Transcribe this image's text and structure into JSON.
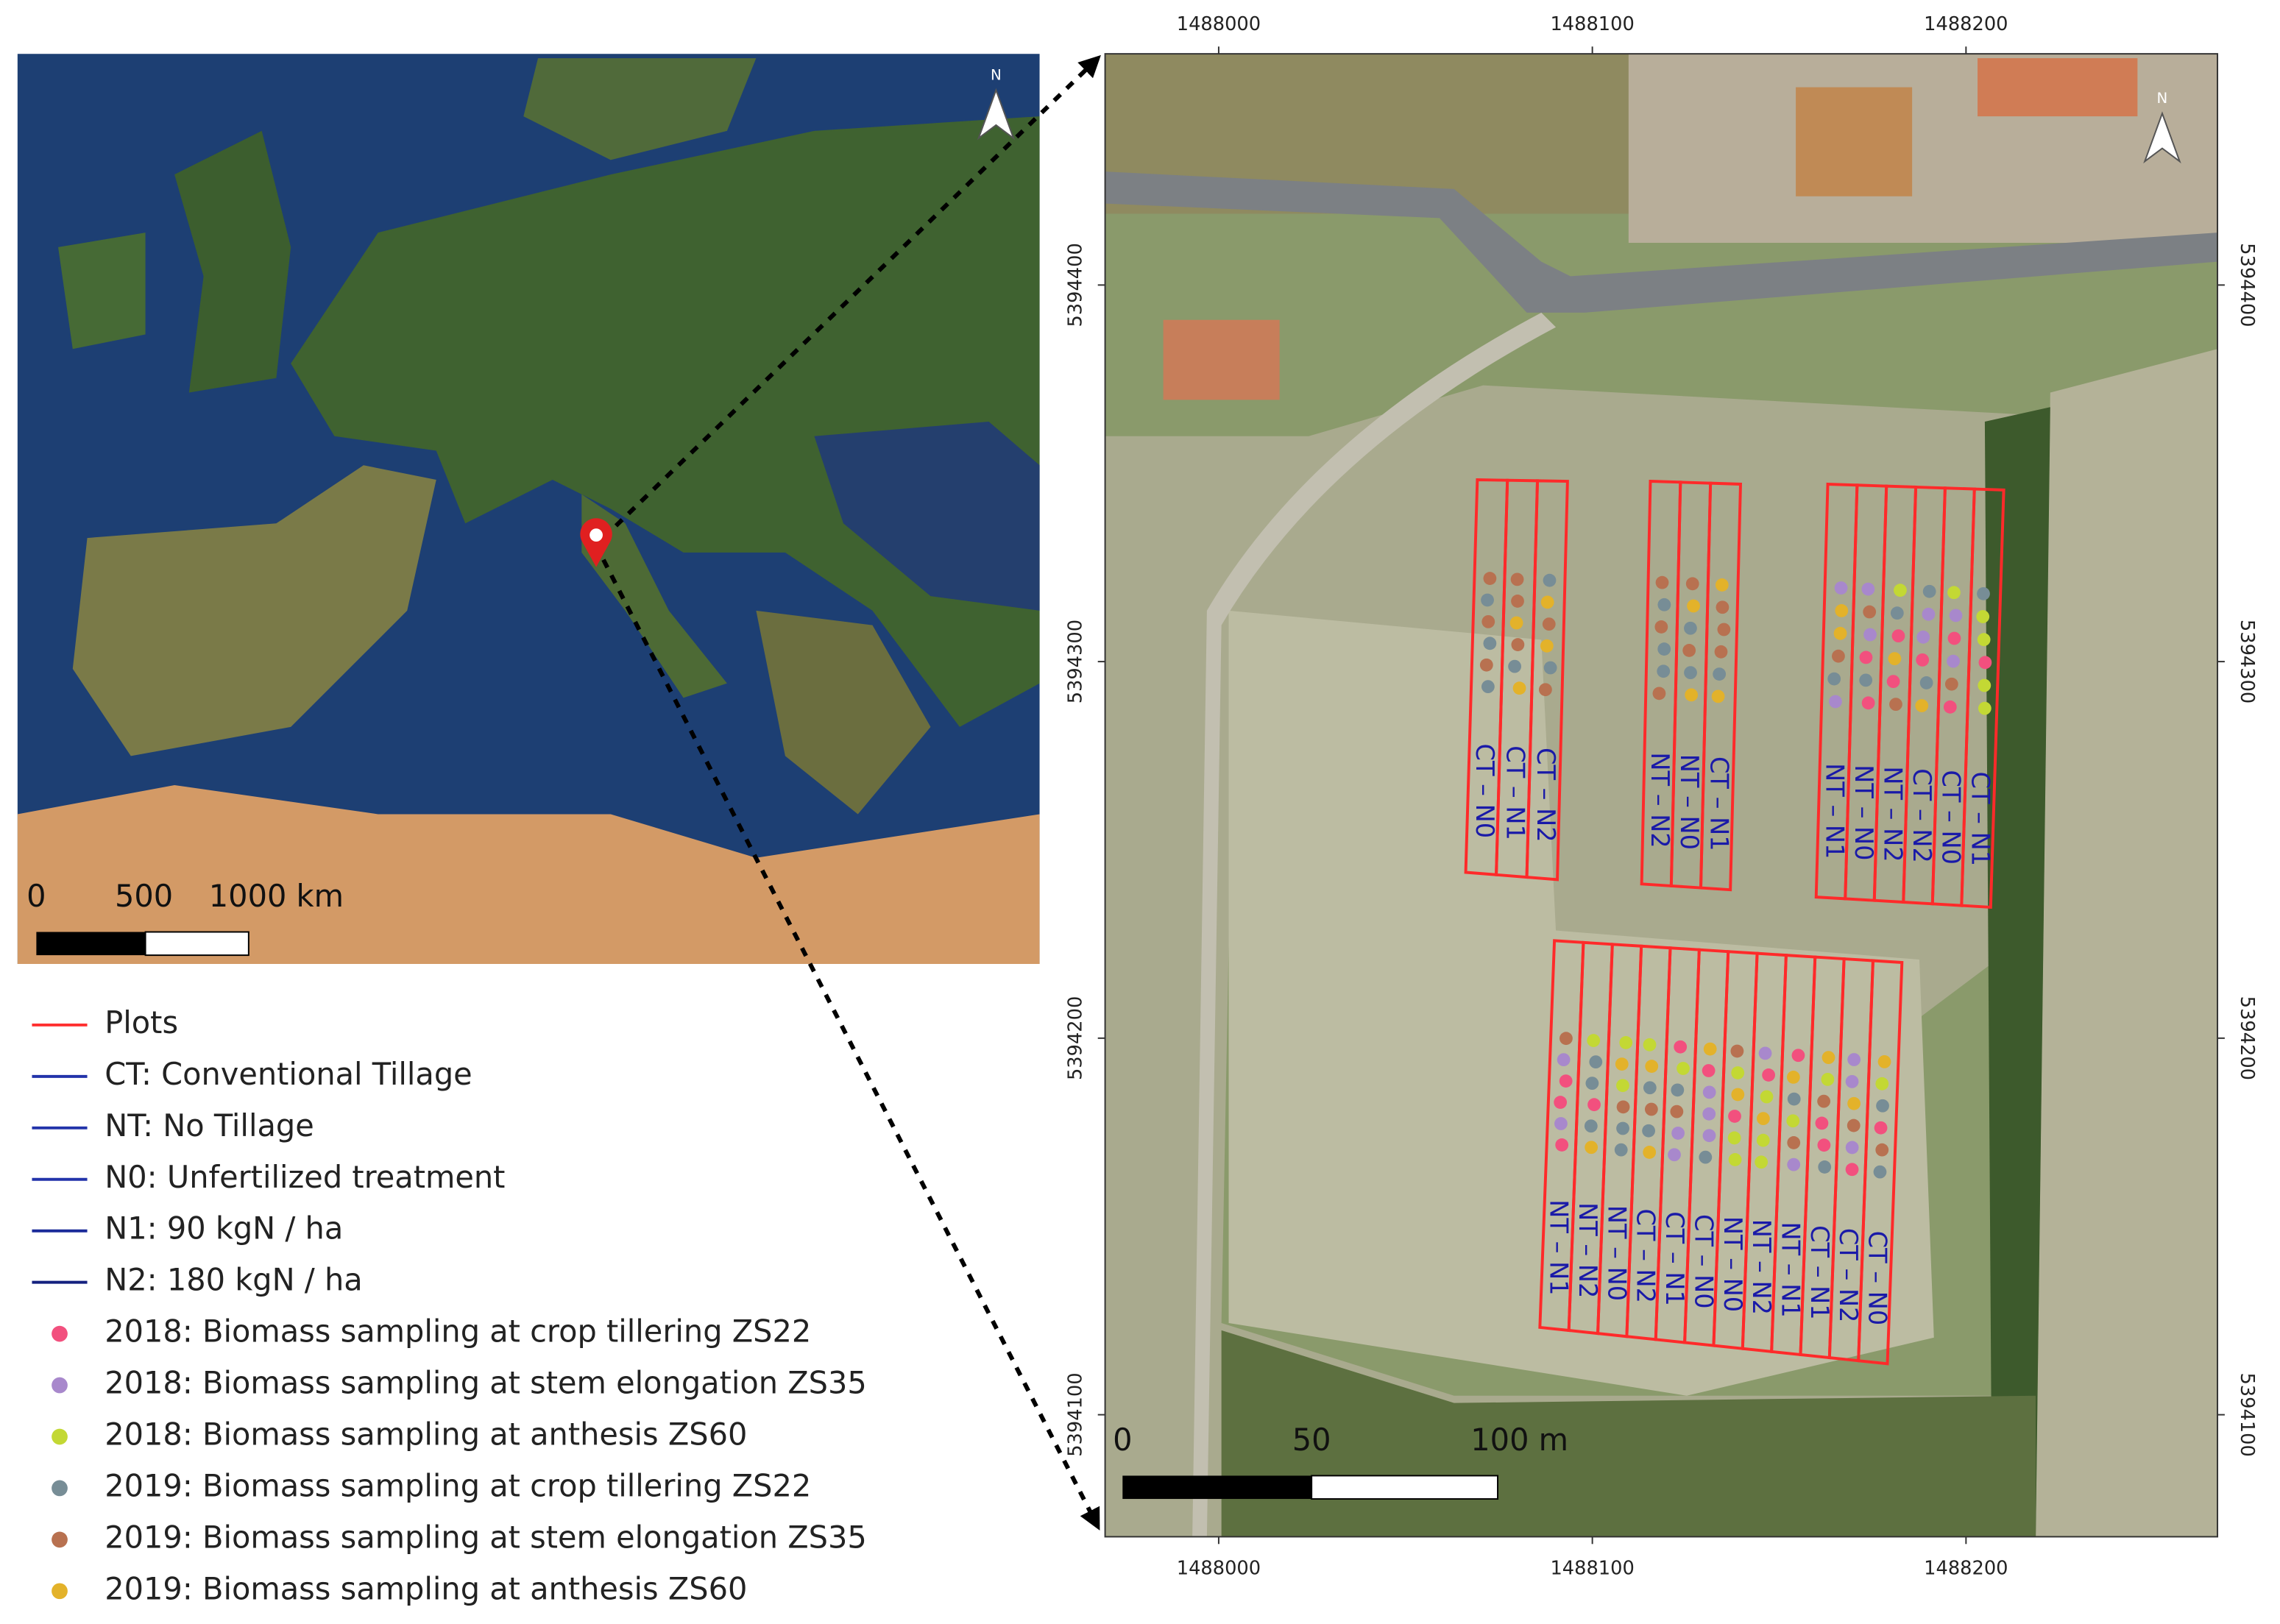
{
  "europe_map": {
    "scale_labels": [
      "0",
      "500",
      "1000 km"
    ],
    "north_label": "N"
  },
  "site_map": {
    "north_label": "N",
    "xlim": [
      1487969.6,
      1488267.3
    ],
    "ylim": [
      5394067.6,
      5394461.4
    ],
    "x_ticks": [
      1488000,
      1488100,
      1488200
    ],
    "y_ticks": [
      5394100,
      5394200,
      5394300,
      5394400
    ],
    "scale_labels": [
      "0",
      "50",
      "100 m"
    ],
    "plot_labels": [
      [
        "CT – N0",
        "CT – N1",
        "CT – N2"
      ],
      [
        "NT – N2",
        "NT – N0",
        "CT – N1"
      ],
      [
        "NT – N1",
        "NT – N0",
        "NT – N2",
        "CT – N2",
        "CT – N0",
        "CT – N1"
      ],
      [
        "NT – N1",
        "NT – N2",
        "NT – N0",
        "CT – N2",
        "CT – N1",
        "CT – N0",
        "NT – N0",
        "NT – N2",
        "NT – N1",
        "CT – N1",
        "CT – N2",
        "CT – N0"
      ]
    ]
  },
  "legend": [
    {
      "label": "Plots",
      "kind": "line",
      "color": "#ff3030"
    },
    {
      "label": "CT: Conventional Tillage",
      "kind": "line",
      "color": "#2233aa"
    },
    {
      "label": "NT: No Tillage",
      "kind": "line",
      "color": "#2233aa"
    },
    {
      "label": "N0: Unfertilized treatment",
      "kind": "line",
      "color": "#2233aa"
    },
    {
      "label": "N1: 90 kgN / ha",
      "kind": "line",
      "color": "#1a2a99"
    },
    {
      "label": "N2: 180 kgN / ha",
      "kind": "line",
      "color": "#14207f"
    },
    {
      "label": "2018: Biomass sampling at crop tillering ZS22",
      "kind": "point",
      "color": "#f2507e"
    },
    {
      "label": "2018: Biomass sampling at stem elongation ZS35",
      "kind": "point",
      "color": "#a888cc"
    },
    {
      "label": "2018: Biomass sampling at anthesis ZS60",
      "kind": "point",
      "color": "#c3d834"
    },
    {
      "label": "2019: Biomass sampling at crop tillering ZS22",
      "kind": "point",
      "color": "#778d96"
    },
    {
      "label": "2019: Biomass sampling at stem elongation ZS35",
      "kind": "point",
      "color": "#b87150"
    },
    {
      "label": "2019: Biomass sampling at anthesis ZS60",
      "kind": "point",
      "color": "#e3b22a"
    }
  ]
}
